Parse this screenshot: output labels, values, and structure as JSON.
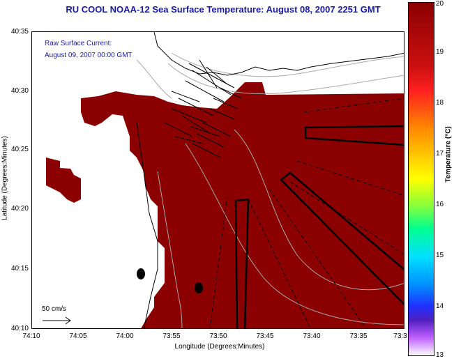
{
  "title": "RU COOL  NOAA-12  Sea Surface Temperature:  August 08, 2007 2251 GMT",
  "overlay": {
    "line1": "Raw Surface Current:",
    "line2": "August 09, 2007 00:00 GMT"
  },
  "scale_label": "50 cm/s",
  "axes": {
    "xlabel": "Longitude (Degrees:Minutes)",
    "ylabel": "Latitude (Degrees:Minutes)",
    "xticks": [
      "74:10",
      "74:05",
      "74:00",
      "73:55",
      "73:50",
      "73:45",
      "73:40",
      "73:35",
      "73:3"
    ],
    "yticks": [
      "40:35",
      "40:30",
      "40:25",
      "40:20",
      "40:15",
      "40:10"
    ]
  },
  "colorbar": {
    "label": "Temperature (°C)",
    "ticks": [
      "20",
      "19",
      "18",
      "17",
      "16",
      "15",
      "14",
      "13"
    ]
  },
  "colors": {
    "sst": "#8b0000",
    "title": "#1a1aa8",
    "land": "#ffffff"
  }
}
